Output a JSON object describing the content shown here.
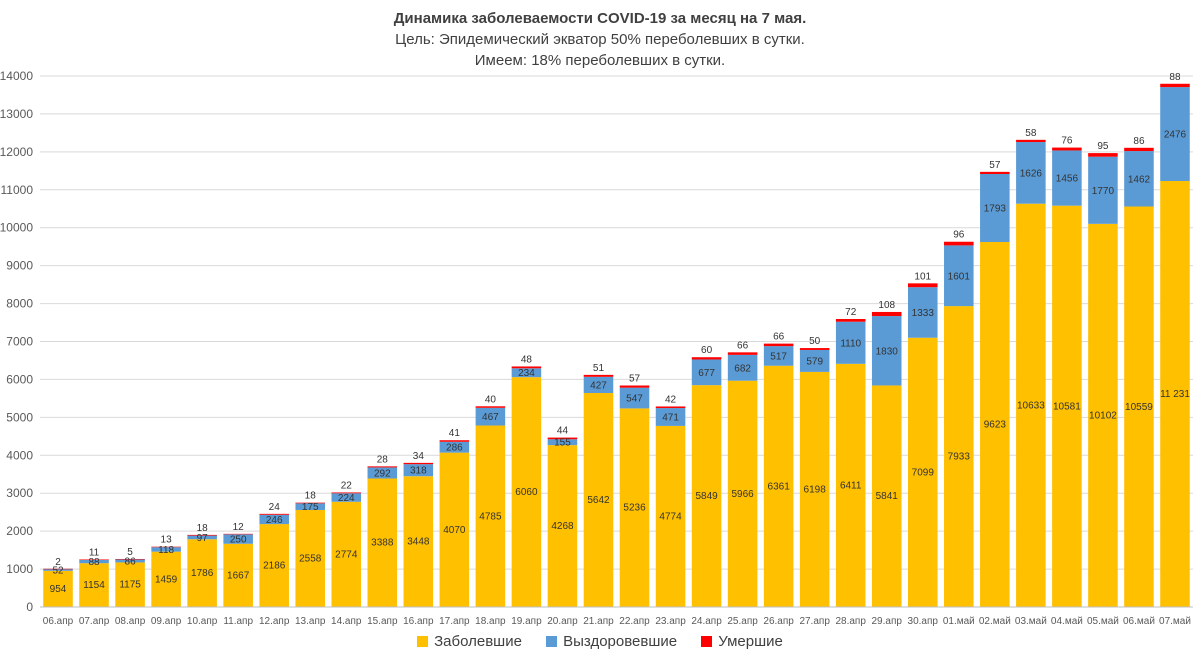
{
  "title": {
    "line1": "Динамика заболеваемости COVID-19 за месяц на 7 мая.",
    "line2": "Цель: Эпидемический экватор 50% переболевших в сутки.",
    "line3": "Имеем: 18% переболевших в сутки."
  },
  "legend": [
    {
      "label": "Заболевшие",
      "color": "#FFC000"
    },
    {
      "label": "Выздоровевшие",
      "color": "#5B9BD5"
    },
    {
      "label": "Умершие",
      "color": "#FF0000"
    }
  ],
  "chart_data": {
    "type": "bar",
    "stacked": true,
    "grid": true,
    "legend_position": "bottom",
    "ylim": [
      0,
      14000
    ],
    "yticks": [
      0,
      1000,
      2000,
      3000,
      4000,
      5000,
      6000,
      7000,
      8000,
      9000,
      10000,
      11000,
      12000,
      13000,
      14000
    ],
    "categories": [
      "06.апр",
      "07.апр",
      "08.апр",
      "09.апр",
      "10.апр",
      "11.апр",
      "12.апр",
      "13.апр",
      "14.апр",
      "15.апр",
      "16.апр",
      "17.апр",
      "18.апр",
      "19.апр",
      "20.апр",
      "21.апр",
      "22.апр",
      "23.апр",
      "24.апр",
      "25.апр",
      "26.апр",
      "27.апр",
      "28.апр",
      "29.апр",
      "30.апр",
      "01.май",
      "02.май",
      "03.май",
      "04.май",
      "05.май",
      "06.май",
      "07.май"
    ],
    "series": [
      {
        "name": "Заболевшие",
        "color": "#FFC000",
        "values": [
          954,
          1154,
          1175,
          1459,
          1786,
          1667,
          2186,
          2558,
          2774,
          3388,
          3448,
          4070,
          4785,
          6060,
          4268,
          5642,
          5236,
          4774,
          5849,
          5966,
          6361,
          6198,
          6411,
          5841,
          7099,
          7933,
          9623,
          10633,
          10581,
          10102,
          10559,
          11231
        ],
        "labels": [
          "954",
          "1154",
          "1175",
          "1459",
          "1786",
          "1667",
          "2186",
          "2558",
          "2774",
          "3388",
          "3448",
          "4070",
          "4785",
          "6060",
          "4268",
          "5642",
          "5236",
          "4774",
          "5849",
          "5966",
          "6361",
          "6198",
          "6411",
          "5841",
          "7099",
          "7933",
          "9623",
          "10633",
          "10581",
          "10102",
          "10559",
          "11 231"
        ]
      },
      {
        "name": "Выздоровевшие",
        "color": "#5B9BD5",
        "values": [
          52,
          88,
          86,
          118,
          97,
          250,
          246,
          175,
          224,
          292,
          318,
          286,
          467,
          234,
          155,
          427,
          547,
          471,
          677,
          682,
          517,
          579,
          1110,
          1830,
          1333,
          1601,
          1793,
          1626,
          1456,
          1770,
          1462,
          2476
        ],
        "labels": [
          "52",
          "88",
          "86",
          "118",
          "97",
          "250",
          "246",
          "175",
          "224",
          "292",
          "318",
          "286",
          "467",
          "234",
          "155",
          "427",
          "547",
          "471",
          "677",
          "682",
          "517",
          "579",
          "1110",
          "1830",
          "1333",
          "1601",
          "1793",
          "1626",
          "1456",
          "1770",
          "1462",
          "2476"
        ]
      },
      {
        "name": "Умершие",
        "color": "#FF0000",
        "values": [
          2,
          11,
          5,
          13,
          18,
          12,
          24,
          18,
          22,
          28,
          34,
          41,
          40,
          48,
          44,
          51,
          57,
          42,
          60,
          66,
          66,
          50,
          72,
          108,
          101,
          96,
          57,
          58,
          76,
          95,
          86,
          88
        ],
        "labels": [
          "2",
          "11",
          "5",
          "13",
          "18",
          "12",
          "24",
          "18",
          "22",
          "28",
          "34",
          "41",
          "40",
          "48",
          "44",
          "51",
          "57",
          "42",
          "60",
          "66",
          "66",
          "50",
          "72",
          "108",
          "101",
          "96",
          "57",
          "58",
          "76",
          "95",
          "86",
          "88"
        ]
      }
    ]
  }
}
